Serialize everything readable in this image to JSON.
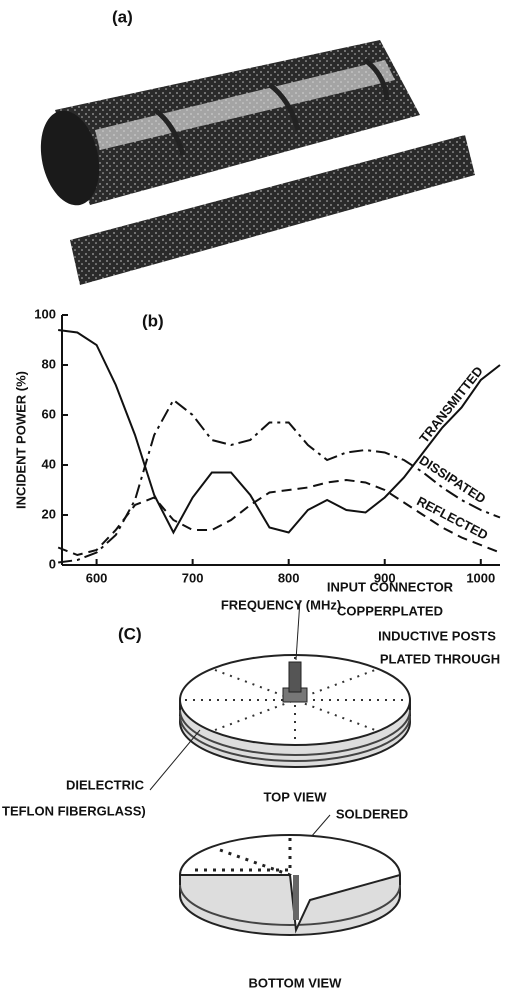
{
  "panel_a": {
    "label": "(a)"
  },
  "chart_data": {
    "type": "line",
    "label": "(b)",
    "xlabel": "FREQUENCY (MHz)",
    "ylabel": "INCIDENT POWER (%)",
    "x": [
      560,
      580,
      600,
      620,
      640,
      660,
      680,
      700,
      720,
      740,
      760,
      780,
      800,
      820,
      840,
      860,
      880,
      900,
      920,
      940,
      960,
      980,
      1000,
      1020
    ],
    "series": [
      {
        "name": "TRANSMITTED",
        "color": "#111111",
        "dash": "solid",
        "values": [
          94,
          93,
          88,
          72,
          52,
          28,
          13,
          27,
          37,
          37,
          28,
          15,
          13,
          22,
          26,
          22,
          21,
          27,
          35,
          45,
          55,
          63,
          74,
          80
        ]
      },
      {
        "name": "DISSIPATED",
        "color": "#111111",
        "dash": "dashdot",
        "values": [
          1,
          2,
          5,
          12,
          26,
          52,
          66,
          60,
          50,
          48,
          50,
          57,
          57,
          48,
          42,
          45,
          46,
          45,
          42,
          37,
          31,
          26,
          22,
          19
        ]
      },
      {
        "name": "REFLECTED",
        "color": "#111111",
        "dash": "dashed",
        "values": [
          7,
          4,
          6,
          14,
          24,
          27,
          18,
          14,
          14,
          18,
          24,
          29,
          30,
          31,
          33,
          34,
          33,
          30,
          25,
          20,
          15,
          11,
          8,
          5
        ]
      }
    ],
    "xlim": [
      564,
      1020
    ],
    "ylim": [
      0,
      100
    ],
    "xticks": [
      600,
      700,
      800,
      900,
      1000
    ],
    "yticks": [
      0,
      20,
      40,
      60,
      80,
      100
    ],
    "grid": false
  },
  "panel_c": {
    "label": "(C)",
    "input_connector": "INPUT CONNECTOR",
    "copperplated": "COPPERPLATED",
    "inductive_posts": "INDUCTIVE POSTS",
    "plated_through": "PLATED THROUGH",
    "dielectric": "DIELECTRIC",
    "teflon": "TEFLON FIBERGLASS)",
    "top_view": "TOP VIEW",
    "soldered": "SOLDERED",
    "bottom_view": "BOTTOM VIEW"
  }
}
